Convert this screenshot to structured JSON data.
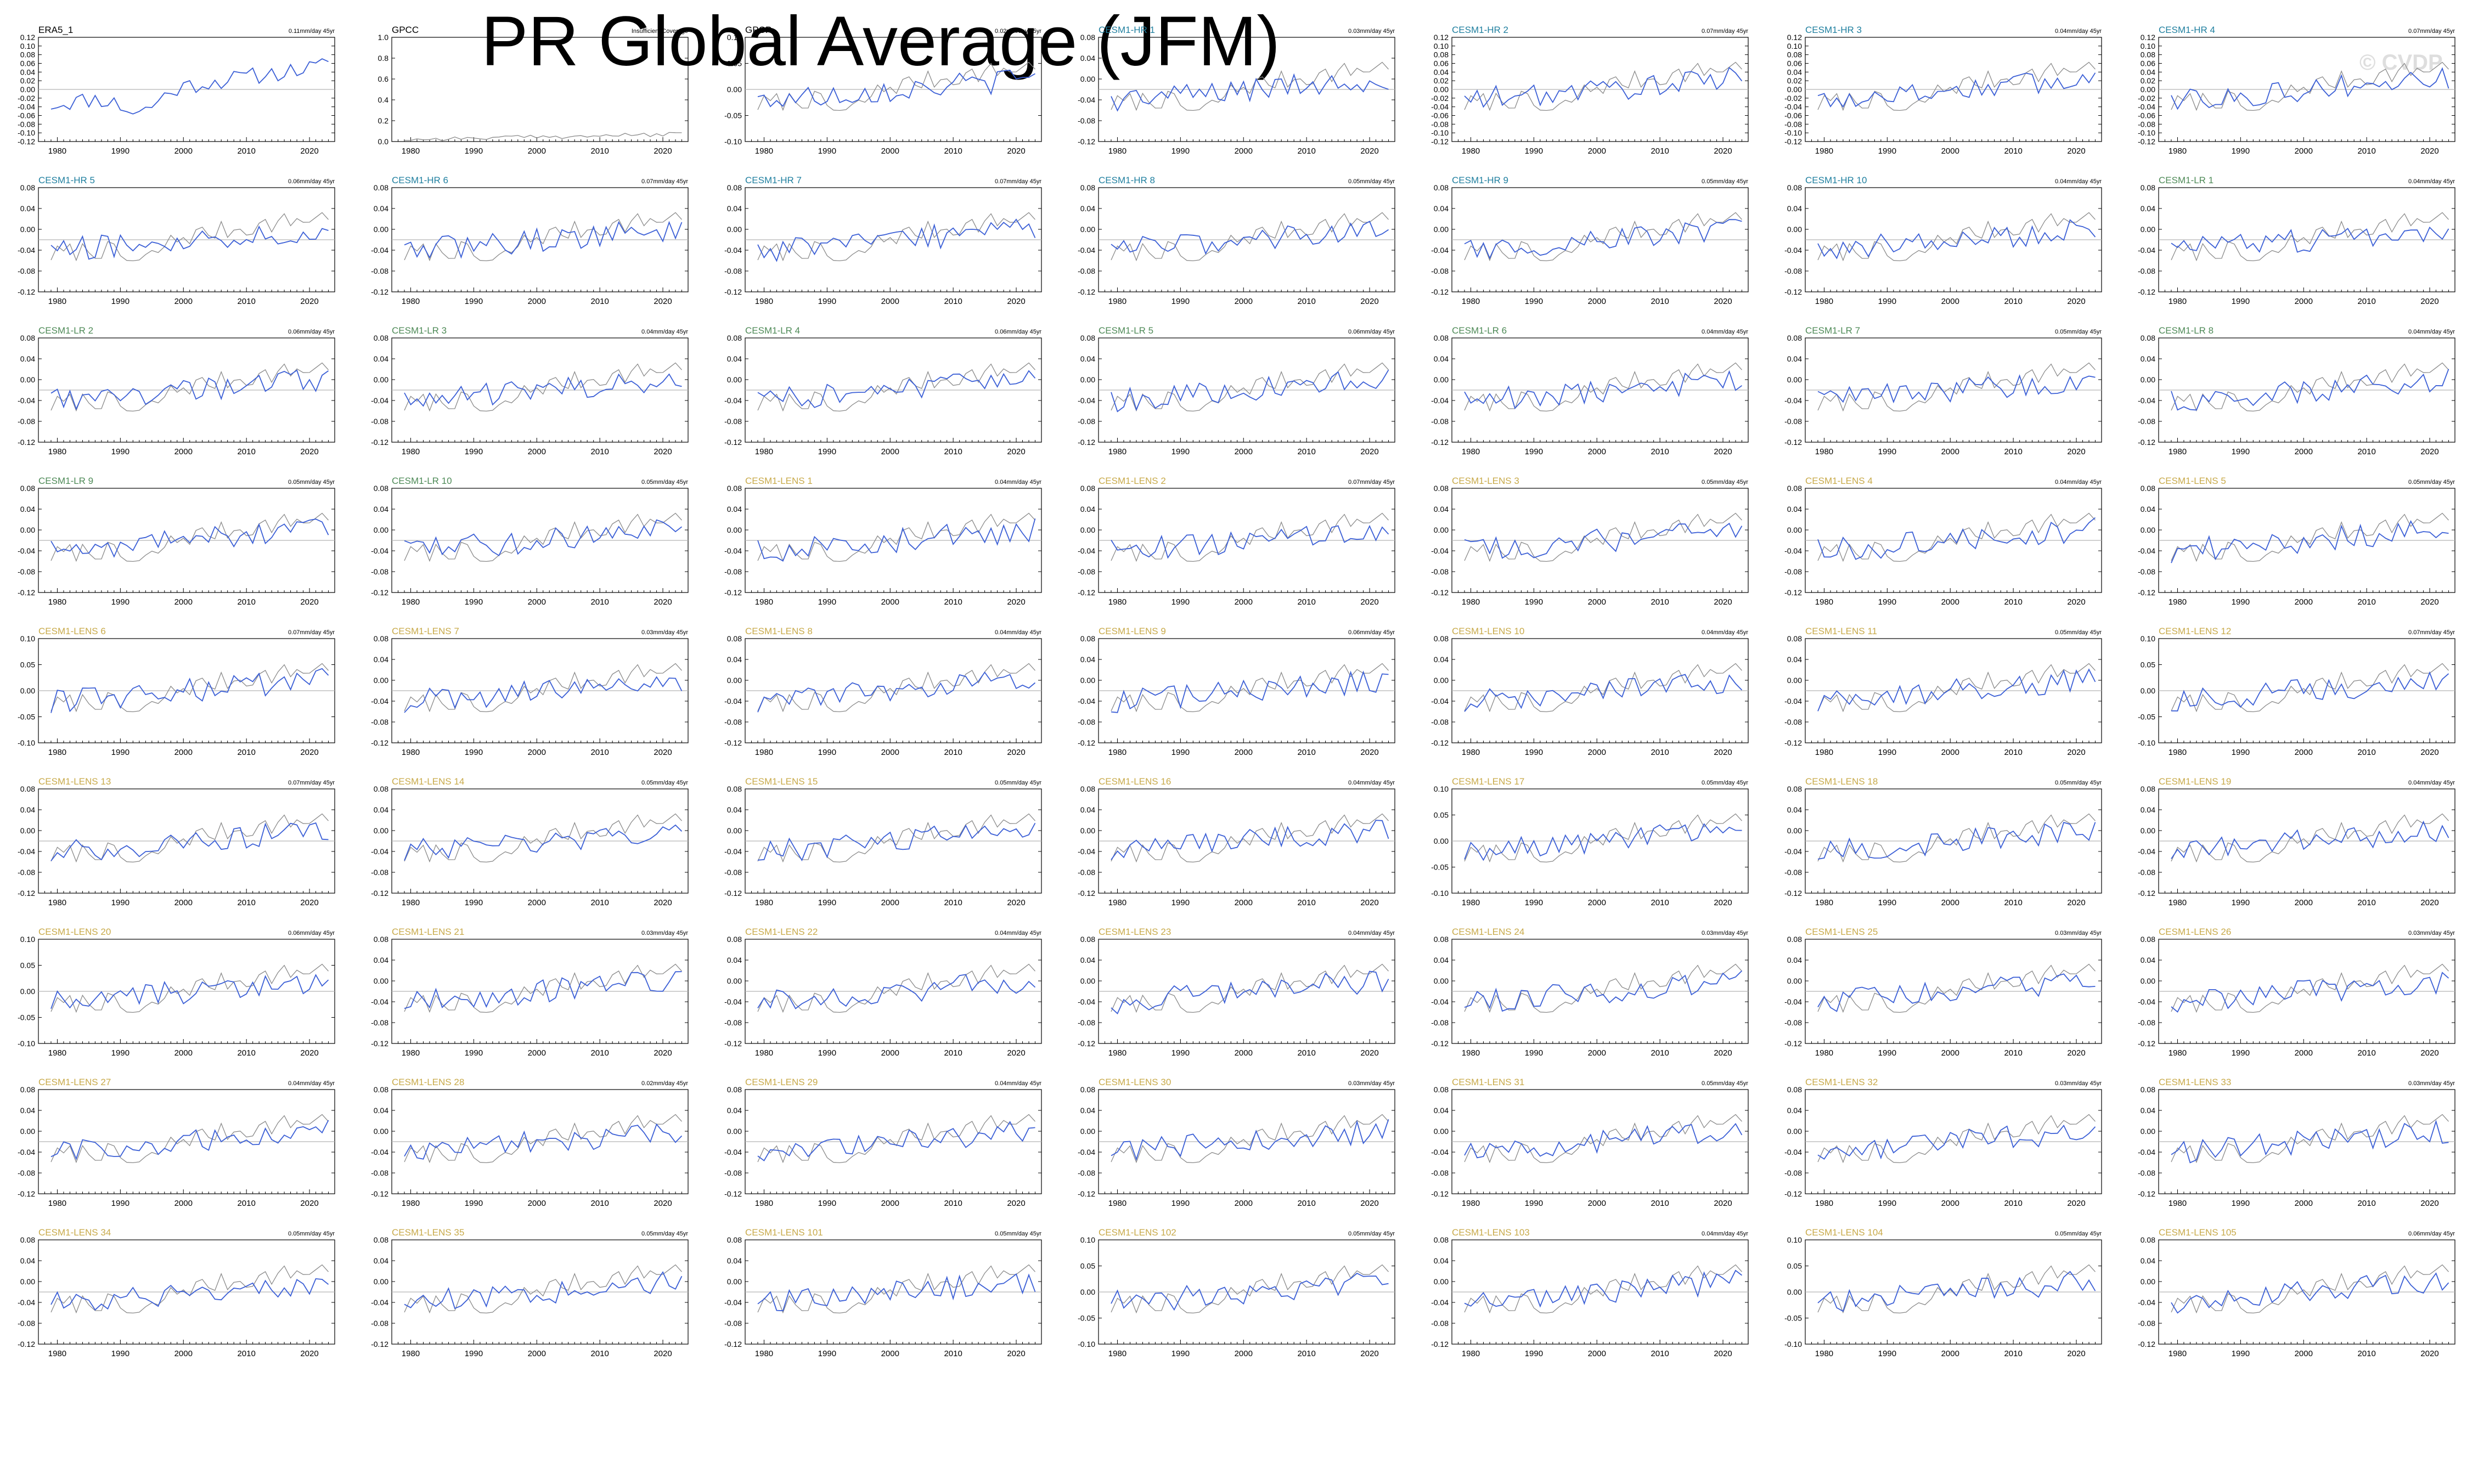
{
  "title": "PR Global Average (JFM)",
  "watermark": "© CVDP",
  "chart_data": {
    "type": "line",
    "x_ticks": [
      1980,
      1990,
      2000,
      2010,
      2020
    ],
    "colors": {
      "model_line": "#3b5fd6",
      "obs_line": "#8a8a8a",
      "zero_line": "#b4b4b4",
      "label_obs": "#000000",
      "label_hr": "#1f7f9f",
      "label_lr": "#4e8a57",
      "label_lens": "#c8aa4a"
    },
    "panels": [
      {
        "name": "ERA5_1",
        "trend": "0.11mm/day 45yr",
        "group": "obs",
        "yticks": [
          "0.12",
          "0.10",
          "0.08",
          "0.06",
          "0.04",
          "0.02",
          "0.00",
          "-0.02",
          "-0.04",
          "-0.06",
          "-0.08",
          "-0.10",
          "-0.12"
        ],
        "ylim": [
          -0.12,
          0.12
        ]
      },
      {
        "name": "GPCC",
        "trend": "Insufficient Coverage",
        "group": "obs",
        "yticks": [
          "1.0",
          "0.8",
          "0.6",
          "0.4",
          "0.2",
          "0.0"
        ],
        "ylim": [
          0,
          1
        ]
      },
      {
        "name": "GPCP",
        "trend": "0.02mm/day 45yr",
        "group": "obs",
        "yticks": [
          "0.10",
          "0.05",
          "0.00",
          "-0.05",
          "-0.10"
        ],
        "ylim": [
          -0.12,
          0.12
        ]
      },
      {
        "name": "CESM1-HR 1",
        "trend": "0.03mm/day 45yr",
        "group": "hr",
        "yticks": [
          "0.08",
          "0.04",
          "0.00",
          "-0.04",
          "-0.08",
          "-0.12"
        ]
      },
      {
        "name": "CESM1-HR 2",
        "trend": "0.07mm/day 45yr",
        "group": "hr",
        "yticks": [
          "0.12",
          "0.10",
          "0.08",
          "0.06",
          "0.04",
          "0.02",
          "0.00",
          "-0.02",
          "-0.04",
          "-0.06",
          "-0.08",
          "-0.10",
          "-0.12"
        ]
      },
      {
        "name": "CESM1-HR 3",
        "trend": "0.04mm/day 45yr",
        "group": "hr",
        "yticks": [
          "0.12",
          "0.10",
          "0.08",
          "0.06",
          "0.04",
          "0.02",
          "0.00",
          "-0.02",
          "-0.04",
          "-0.06",
          "-0.08",
          "-0.10",
          "-0.12"
        ]
      },
      {
        "name": "CESM1-HR 4",
        "trend": "0.07mm/day 45yr",
        "group": "hr",
        "yticks": [
          "0.12",
          "0.10",
          "0.08",
          "0.06",
          "0.04",
          "0.02",
          "0.00",
          "-0.02",
          "-0.04",
          "-0.06",
          "-0.08",
          "-0.10",
          "-0.12"
        ]
      },
      {
        "name": "CESM1-HR 5",
        "trend": "0.06mm/day 45yr",
        "group": "hr",
        "yticks": [
          "0.08",
          "0.04",
          "0.00",
          "-0.04",
          "-0.08",
          "-0.12"
        ]
      },
      {
        "name": "CESM1-HR 6",
        "trend": "0.07mm/day 45yr",
        "group": "hr",
        "yticks": [
          "0.08",
          "0.04",
          "0.00",
          "-0.04",
          "-0.08",
          "-0.12"
        ]
      },
      {
        "name": "CESM1-HR 7",
        "trend": "0.07mm/day 45yr",
        "group": "hr",
        "yticks": [
          "0.08",
          "0.04",
          "0.00",
          "-0.04",
          "-0.08",
          "-0.12"
        ]
      },
      {
        "name": "CESM1-HR 8",
        "trend": "0.05mm/day 45yr",
        "group": "hr",
        "yticks": [
          "0.08",
          "0.04",
          "0.00",
          "-0.04",
          "-0.08",
          "-0.12"
        ]
      },
      {
        "name": "CESM1-HR 9",
        "trend": "0.05mm/day 45yr",
        "group": "hr",
        "yticks": [
          "0.08",
          "0.04",
          "0.00",
          "-0.04",
          "-0.08",
          "-0.12"
        ]
      },
      {
        "name": "CESM1-HR 10",
        "trend": "0.04mm/day 45yr",
        "group": "hr",
        "yticks": [
          "0.08",
          "0.04",
          "0.00",
          "-0.04",
          "-0.08",
          "-0.12"
        ]
      },
      {
        "name": "CESM1-LR 1",
        "trend": "0.04mm/day 45yr",
        "group": "lr",
        "yticks": [
          "0.08",
          "0.04",
          "0.00",
          "-0.04",
          "-0.08",
          "-0.12"
        ]
      },
      {
        "name": "CESM1-LR 2",
        "trend": "0.06mm/day 45yr",
        "group": "lr",
        "yticks": [
          "0.08",
          "0.04",
          "0.00",
          "-0.04",
          "-0.08",
          "-0.12"
        ]
      },
      {
        "name": "CESM1-LR 3",
        "trend": "0.04mm/day 45yr",
        "group": "lr",
        "yticks": [
          "0.08",
          "0.04",
          "0.00",
          "-0.04",
          "-0.08",
          "-0.12"
        ]
      },
      {
        "name": "CESM1-LR 4",
        "trend": "0.06mm/day 45yr",
        "group": "lr",
        "yticks": [
          "0.08",
          "0.04",
          "0.00",
          "-0.04",
          "-0.08",
          "-0.12"
        ]
      },
      {
        "name": "CESM1-LR 5",
        "trend": "0.06mm/day 45yr",
        "group": "lr",
        "yticks": [
          "0.08",
          "0.04",
          "0.00",
          "-0.04",
          "-0.08",
          "-0.12"
        ]
      },
      {
        "name": "CESM1-LR 6",
        "trend": "0.04mm/day 45yr",
        "group": "lr",
        "yticks": [
          "0.08",
          "0.04",
          "0.00",
          "-0.04",
          "-0.08",
          "-0.12"
        ]
      },
      {
        "name": "CESM1-LR 7",
        "trend": "0.05mm/day 45yr",
        "group": "lr",
        "yticks": [
          "0.08",
          "0.04",
          "0.00",
          "-0.04",
          "-0.08",
          "-0.12"
        ]
      },
      {
        "name": "CESM1-LR 8",
        "trend": "0.04mm/day 45yr",
        "group": "lr",
        "yticks": [
          "0.08",
          "0.04",
          "0.00",
          "-0.04",
          "-0.08",
          "-0.12"
        ]
      },
      {
        "name": "CESM1-LR 9",
        "trend": "0.05mm/day 45yr",
        "group": "lr",
        "yticks": [
          "0.08",
          "0.04",
          "0.00",
          "-0.04",
          "-0.08",
          "-0.12"
        ]
      },
      {
        "name": "CESM1-LR 10",
        "trend": "0.05mm/day 45yr",
        "group": "lr",
        "yticks": [
          "0.08",
          "0.04",
          "0.00",
          "-0.04",
          "-0.08",
          "-0.12"
        ]
      },
      {
        "name": "CESM1-LENS 1",
        "trend": "0.04mm/day 45yr",
        "group": "lens",
        "yticks": [
          "0.08",
          "0.04",
          "0.00",
          "-0.04",
          "-0.08",
          "-0.12"
        ]
      },
      {
        "name": "CESM1-LENS 2",
        "trend": "0.07mm/day 45yr",
        "group": "lens",
        "yticks": [
          "0.08",
          "0.04",
          "0.00",
          "-0.04",
          "-0.08",
          "-0.12"
        ]
      },
      {
        "name": "CESM1-LENS 3",
        "trend": "0.05mm/day 45yr",
        "group": "lens",
        "yticks": [
          "0.08",
          "0.04",
          "0.00",
          "-0.04",
          "-0.08",
          "-0.12"
        ]
      },
      {
        "name": "CESM1-LENS 4",
        "trend": "0.04mm/day 45yr",
        "group": "lens",
        "yticks": [
          "0.08",
          "0.04",
          "0.00",
          "-0.04",
          "-0.08",
          "-0.12"
        ]
      },
      {
        "name": "CESM1-LENS 5",
        "trend": "0.05mm/day 45yr",
        "group": "lens",
        "yticks": [
          "0.08",
          "0.04",
          "0.00",
          "-0.04",
          "-0.08",
          "-0.12"
        ]
      },
      {
        "name": "CESM1-LENS 6",
        "trend": "0.07mm/day 45yr",
        "group": "lens",
        "yticks": [
          "0.10",
          "0.05",
          "0.00",
          "-0.05",
          "-0.10"
        ]
      },
      {
        "name": "CESM1-LENS 7",
        "trend": "0.03mm/day 45yr",
        "group": "lens",
        "yticks": [
          "0.08",
          "0.04",
          "0.00",
          "-0.04",
          "-0.08",
          "-0.12"
        ]
      },
      {
        "name": "CESM1-LENS 8",
        "trend": "0.04mm/day 45yr",
        "group": "lens",
        "yticks": [
          "0.08",
          "0.04",
          "0.00",
          "-0.04",
          "-0.08",
          "-0.12"
        ]
      },
      {
        "name": "CESM1-LENS 9",
        "trend": "0.06mm/day 45yr",
        "group": "lens",
        "yticks": [
          "0.08",
          "0.04",
          "0.00",
          "-0.04",
          "-0.08",
          "-0.12"
        ]
      },
      {
        "name": "CESM1-LENS 10",
        "trend": "0.04mm/day 45yr",
        "group": "lens",
        "yticks": [
          "0.08",
          "0.04",
          "0.00",
          "-0.04",
          "-0.08",
          "-0.12"
        ]
      },
      {
        "name": "CESM1-LENS 11",
        "trend": "0.05mm/day 45yr",
        "group": "lens",
        "yticks": [
          "0.08",
          "0.04",
          "0.00",
          "-0.04",
          "-0.08",
          "-0.12"
        ]
      },
      {
        "name": "CESM1-LENS 12",
        "trend": "0.07mm/day 45yr",
        "group": "lens",
        "yticks": [
          "0.10",
          "0.05",
          "0.00",
          "-0.05",
          "-0.10"
        ]
      },
      {
        "name": "CESM1-LENS 13",
        "trend": "0.07mm/day 45yr",
        "group": "lens",
        "yticks": [
          "0.08",
          "0.04",
          "0.00",
          "-0.04",
          "-0.08",
          "-0.12"
        ]
      },
      {
        "name": "CESM1-LENS 14",
        "trend": "0.05mm/day 45yr",
        "group": "lens",
        "yticks": [
          "0.08",
          "0.04",
          "0.00",
          "-0.04",
          "-0.08",
          "-0.12"
        ]
      },
      {
        "name": "CESM1-LENS 15",
        "trend": "0.05mm/day 45yr",
        "group": "lens",
        "yticks": [
          "0.08",
          "0.04",
          "0.00",
          "-0.04",
          "-0.08",
          "-0.12"
        ]
      },
      {
        "name": "CESM1-LENS 16",
        "trend": "0.04mm/day 45yr",
        "group": "lens",
        "yticks": [
          "0.08",
          "0.04",
          "0.00",
          "-0.04",
          "-0.08",
          "-0.12"
        ]
      },
      {
        "name": "CESM1-LENS 17",
        "trend": "0.05mm/day 45yr",
        "group": "lens",
        "yticks": [
          "0.10",
          "0.05",
          "0.00",
          "-0.05",
          "-0.10"
        ]
      },
      {
        "name": "CESM1-LENS 18",
        "trend": "0.05mm/day 45yr",
        "group": "lens",
        "yticks": [
          "0.08",
          "0.04",
          "0.00",
          "-0.04",
          "-0.08",
          "-0.12"
        ]
      },
      {
        "name": "CESM1-LENS 19",
        "trend": "0.04mm/day 45yr",
        "group": "lens",
        "yticks": [
          "0.08",
          "0.04",
          "0.00",
          "-0.04",
          "-0.08",
          "-0.12"
        ]
      },
      {
        "name": "CESM1-LENS 20",
        "trend": "0.06mm/day 45yr",
        "group": "lens",
        "yticks": [
          "0.10",
          "0.05",
          "0.00",
          "-0.05",
          "-0.10"
        ]
      },
      {
        "name": "CESM1-LENS 21",
        "trend": "0.03mm/day 45yr",
        "group": "lens",
        "yticks": [
          "0.08",
          "0.04",
          "0.00",
          "-0.04",
          "-0.08",
          "-0.12"
        ]
      },
      {
        "name": "CESM1-LENS 22",
        "trend": "0.04mm/day 45yr",
        "group": "lens",
        "yticks": [
          "0.08",
          "0.04",
          "0.00",
          "-0.04",
          "-0.08",
          "-0.12"
        ]
      },
      {
        "name": "CESM1-LENS 23",
        "trend": "0.04mm/day 45yr",
        "group": "lens",
        "yticks": [
          "0.08",
          "0.04",
          "0.00",
          "-0.04",
          "-0.08",
          "-0.12"
        ]
      },
      {
        "name": "CESM1-LENS 24",
        "trend": "0.03mm/day 45yr",
        "group": "lens",
        "yticks": [
          "0.08",
          "0.04",
          "0.00",
          "-0.04",
          "-0.08",
          "-0.12"
        ]
      },
      {
        "name": "CESM1-LENS 25",
        "trend": "0.03mm/day 45yr",
        "group": "lens",
        "yticks": [
          "0.08",
          "0.04",
          "0.00",
          "-0.04",
          "-0.08",
          "-0.12"
        ]
      },
      {
        "name": "CESM1-LENS 26",
        "trend": "0.03mm/day 45yr",
        "group": "lens",
        "yticks": [
          "0.08",
          "0.04",
          "0.00",
          "-0.04",
          "-0.08",
          "-0.12"
        ]
      },
      {
        "name": "CESM1-LENS 27",
        "trend": "0.04mm/day 45yr",
        "group": "lens",
        "yticks": [
          "0.08",
          "0.04",
          "0.00",
          "-0.04",
          "-0.08",
          "-0.12"
        ]
      },
      {
        "name": "CESM1-LENS 28",
        "trend": "0.02mm/day 45yr",
        "group": "lens",
        "yticks": [
          "0.08",
          "0.04",
          "0.00",
          "-0.04",
          "-0.08",
          "-0.12"
        ]
      },
      {
        "name": "CESM1-LENS 29",
        "trend": "0.04mm/day 45yr",
        "group": "lens",
        "yticks": [
          "0.08",
          "0.04",
          "0.00",
          "-0.04",
          "-0.08",
          "-0.12"
        ]
      },
      {
        "name": "CESM1-LENS 30",
        "trend": "0.03mm/day 45yr",
        "group": "lens",
        "yticks": [
          "0.08",
          "0.04",
          "0.00",
          "-0.04",
          "-0.08",
          "-0.12"
        ]
      },
      {
        "name": "CESM1-LENS 31",
        "trend": "0.05mm/day 45yr",
        "group": "lens",
        "yticks": [
          "0.08",
          "0.04",
          "0.00",
          "-0.04",
          "-0.08",
          "-0.12"
        ]
      },
      {
        "name": "CESM1-LENS 32",
        "trend": "0.03mm/day 45yr",
        "group": "lens",
        "yticks": [
          "0.08",
          "0.04",
          "0.00",
          "-0.04",
          "-0.08",
          "-0.12"
        ]
      },
      {
        "name": "CESM1-LENS 33",
        "trend": "0.03mm/day 45yr",
        "group": "lens",
        "yticks": [
          "0.08",
          "0.04",
          "0.00",
          "-0.04",
          "-0.08",
          "-0.12"
        ]
      },
      {
        "name": "CESM1-LENS 34",
        "trend": "0.05mm/day 45yr",
        "group": "lens",
        "yticks": [
          "0.08",
          "0.04",
          "0.00",
          "-0.04",
          "-0.08",
          "-0.12"
        ]
      },
      {
        "name": "CESM1-LENS 35",
        "trend": "0.05mm/day 45yr",
        "group": "lens",
        "yticks": [
          "0.08",
          "0.04",
          "0.00",
          "-0.04",
          "-0.08",
          "-0.12"
        ]
      },
      {
        "name": "CESM1-LENS 101",
        "trend": "0.05mm/day 45yr",
        "group": "lens",
        "yticks": [
          "0.08",
          "0.04",
          "0.00",
          "-0.04",
          "-0.08",
          "-0.12"
        ]
      },
      {
        "name": "CESM1-LENS 102",
        "trend": "0.05mm/day 45yr",
        "group": "lens",
        "yticks": [
          "0.10",
          "0.05",
          "0.00",
          "-0.05",
          "-0.10"
        ]
      },
      {
        "name": "CESM1-LENS 103",
        "trend": "0.04mm/day 45yr",
        "group": "lens",
        "yticks": [
          "0.08",
          "0.04",
          "0.00",
          "-0.04",
          "-0.08",
          "-0.12"
        ]
      },
      {
        "name": "CESM1-LENS 104",
        "trend": "0.05mm/day 45yr",
        "group": "lens",
        "yticks": [
          "0.10",
          "0.05",
          "0.00",
          "-0.05",
          "-0.10"
        ]
      },
      {
        "name": "CESM1-LENS 105",
        "trend": "0.06mm/day 45yr",
        "group": "lens",
        "yticks": [
          "0.08",
          "0.04",
          "0.00",
          "-0.04",
          "-0.08",
          "-0.12"
        ]
      }
    ]
  }
}
